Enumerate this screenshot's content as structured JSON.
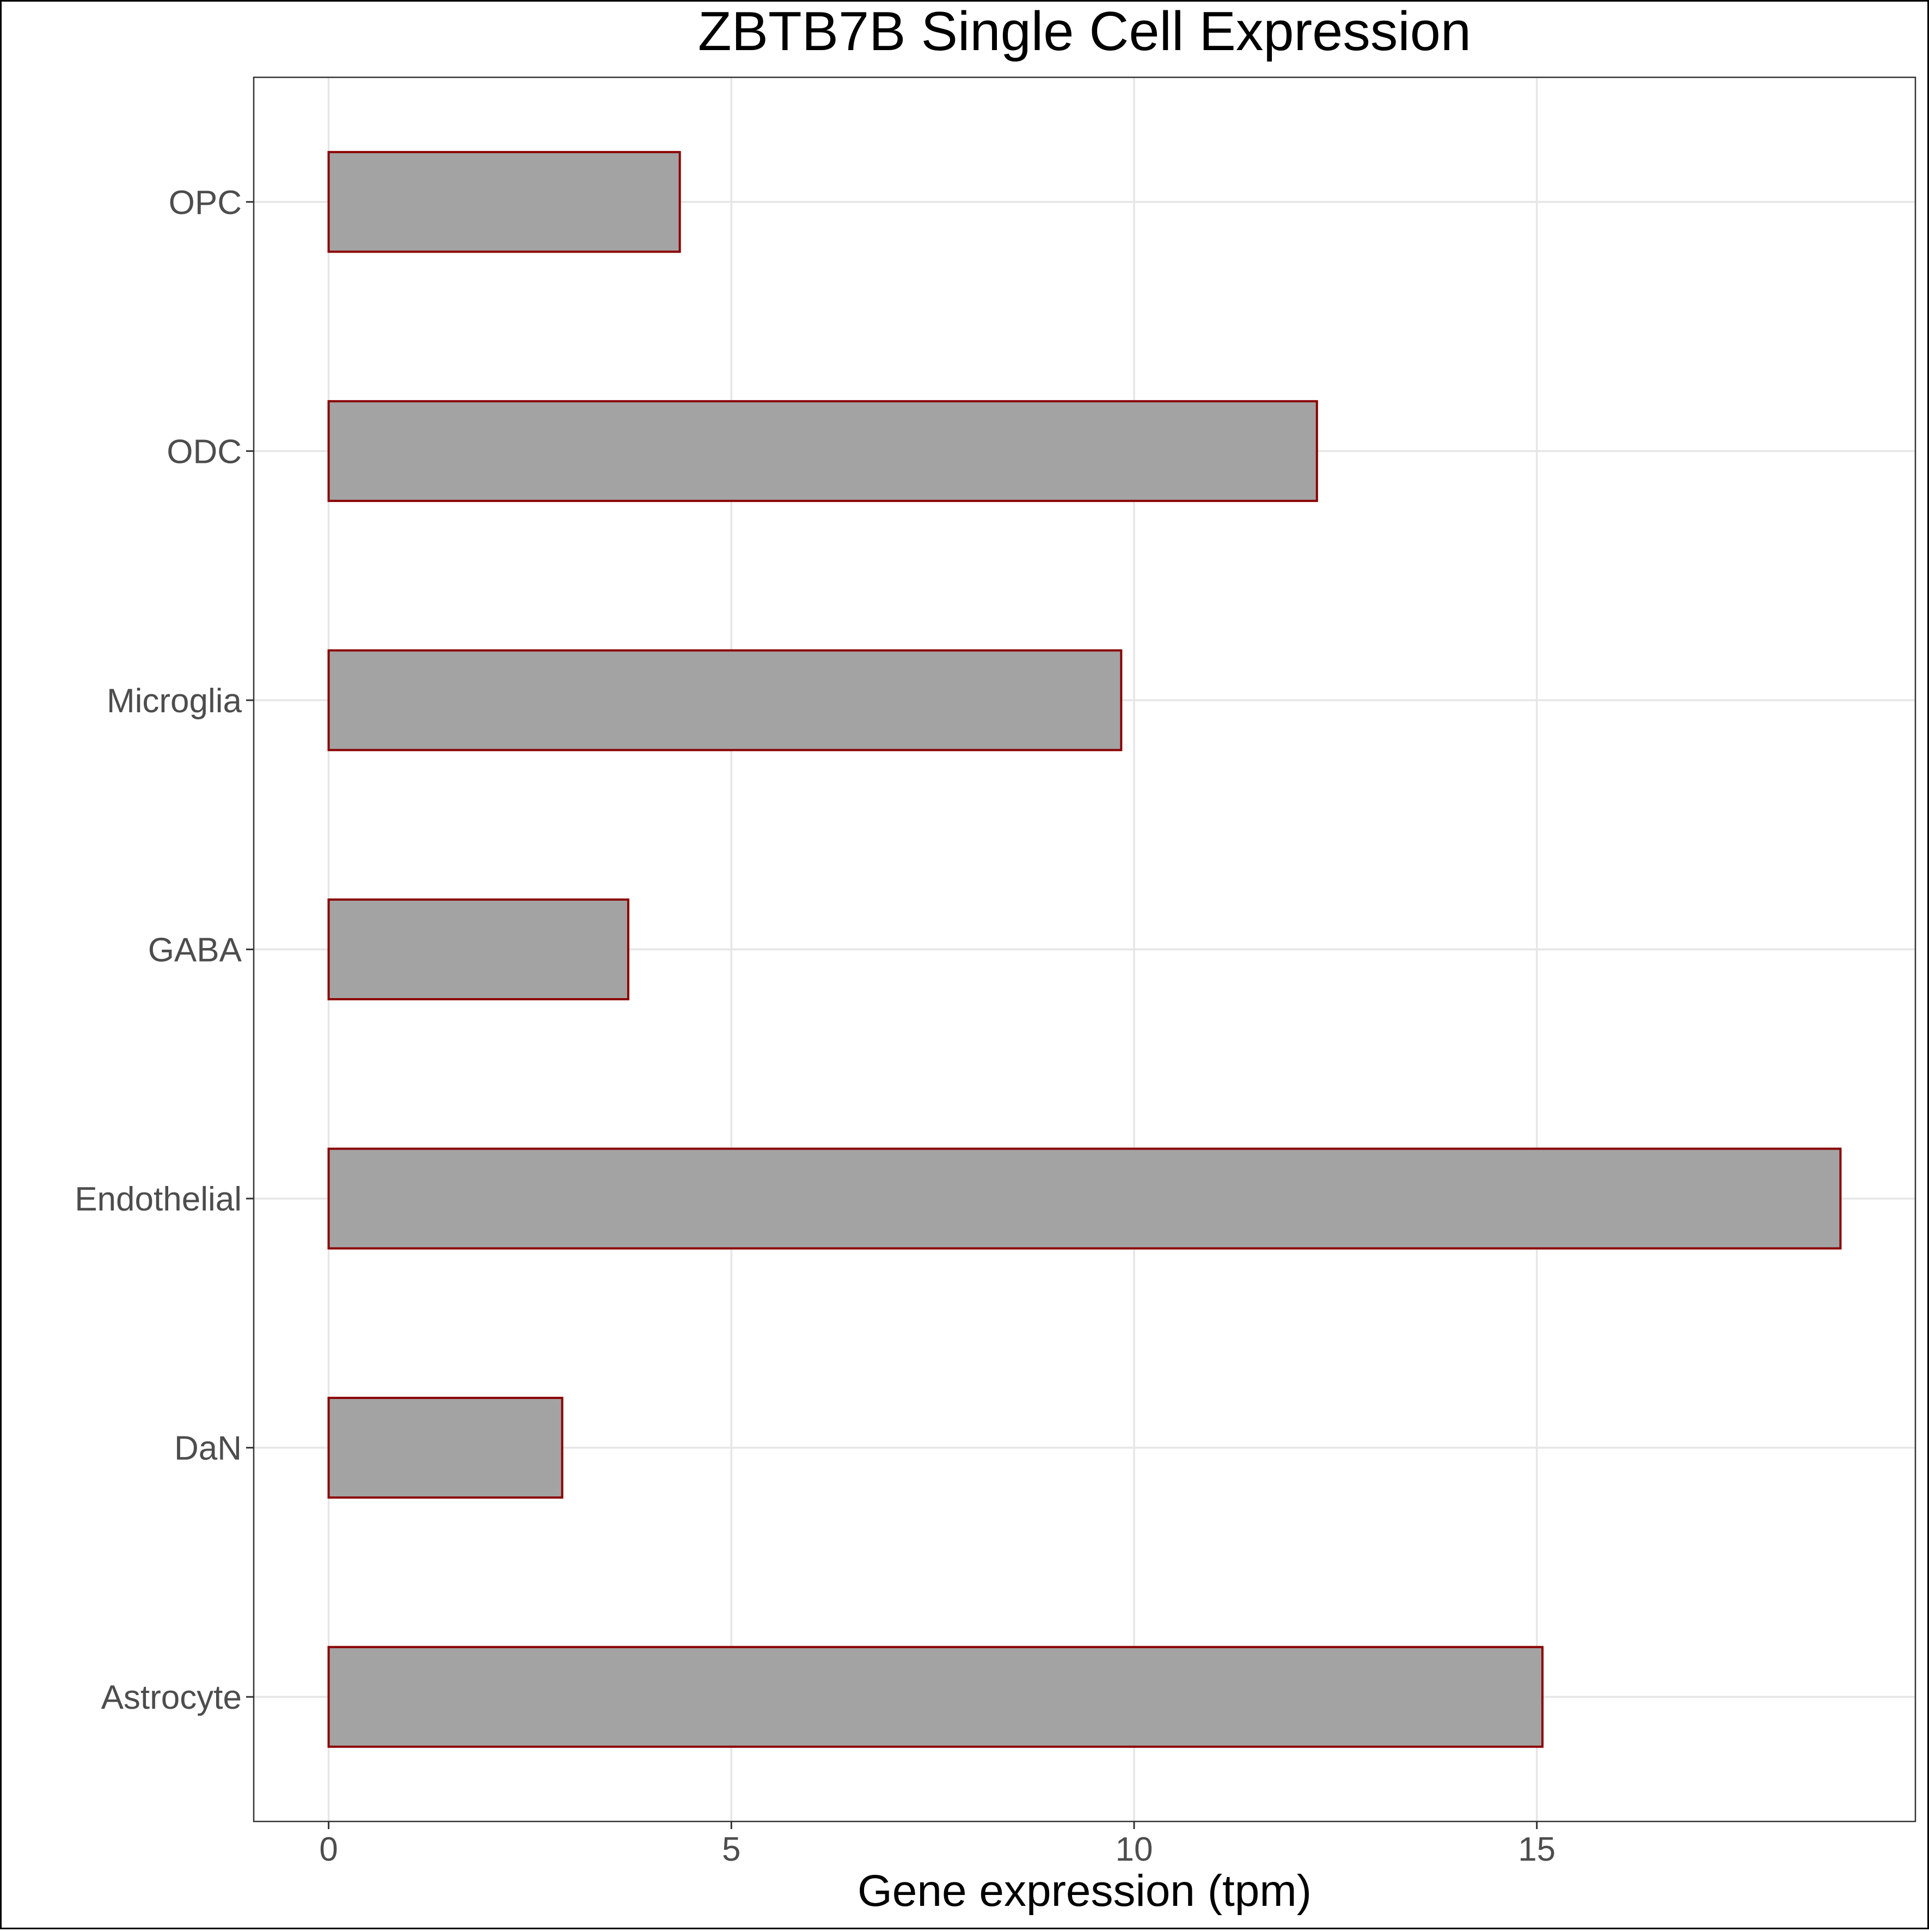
{
  "chart_data": {
    "type": "bar",
    "orientation": "horizontal",
    "title": "ZBTB7B Single Cell Expression",
    "xlabel": "Gene expression (tpm)",
    "ylabel": "",
    "categories": [
      "Astrocyte",
      "DaN",
      "Endothelial",
      "GABA",
      "Microglia",
      "ODC",
      "OPC"
    ],
    "values": [
      15.07,
      2.9,
      18.77,
      3.72,
      9.84,
      12.27,
      4.36
    ],
    "xlim": [
      -0.93,
      19.7
    ],
    "xticks": [
      0,
      5,
      10,
      15
    ],
    "xtick_labels": [
      "0",
      "5",
      "10",
      "15"
    ],
    "grid": true,
    "legend": "none",
    "colors": {
      "bar_fill": "#a3a3a3",
      "bar_outline": "#8b0000",
      "grid": "#e6e6e6",
      "tick_label": "#4d4d4d",
      "title": "#000000"
    }
  }
}
